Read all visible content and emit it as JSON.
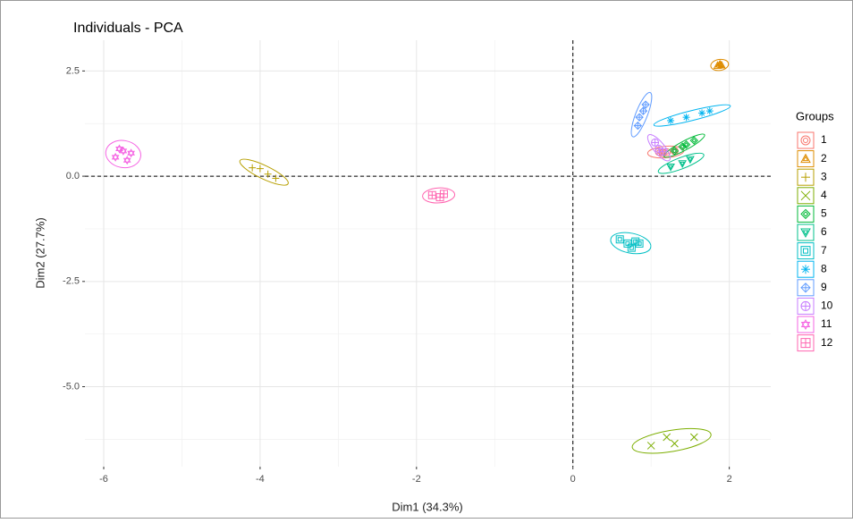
{
  "chart_data": {
    "type": "scatter",
    "title": "Individuals - PCA",
    "x_label": "Dim1 (34.3%)",
    "y_label": "Dim2 (27.7%)",
    "legend_title": "Groups",
    "xlim": [
      -6.24,
      2.53
    ],
    "ylim": [
      -6.9,
      3.23
    ],
    "xticks": [
      -6,
      -4,
      -2,
      0,
      2
    ],
    "yticks": [
      2.5,
      0.0,
      -2.5,
      -5.0
    ],
    "xminor": [
      -5,
      -3,
      -1,
      1
    ],
    "yminor": [
      1.25,
      -1.25,
      -3.75,
      -6.25
    ],
    "grid": true,
    "reference_lines": [
      0,
      0
    ],
    "legend": "right",
    "ellipses": true,
    "series": [
      {
        "name": "1",
        "color": "#F8766D",
        "shape": "circle",
        "x": [
          1.1,
          1.2,
          1.3,
          1.15
        ],
        "y": [
          0.58,
          0.57,
          0.6,
          0.55
        ]
      },
      {
        "name": "2",
        "color": "#DE8C00",
        "shape": "triangle",
        "x": [
          1.85,
          1.88,
          1.9
        ],
        "y": [
          2.63,
          2.66,
          2.64
        ]
      },
      {
        "name": "3",
        "color": "#B79F00",
        "shape": "plus",
        "x": [
          -4.1,
          -4.0,
          -3.9,
          -3.8
        ],
        "y": [
          0.2,
          0.18,
          0.05,
          -0.05
        ]
      },
      {
        "name": "4",
        "color": "#7CAE00",
        "shape": "cross",
        "x": [
          1.0,
          1.2,
          1.3,
          1.55
        ],
        "y": [
          -6.4,
          -6.2,
          -6.35,
          -6.2
        ]
      },
      {
        "name": "5",
        "color": "#00BA38",
        "shape": "diamond",
        "x": [
          1.3,
          1.45,
          1.55,
          1.4
        ],
        "y": [
          0.6,
          0.75,
          0.85,
          0.7
        ]
      },
      {
        "name": "6",
        "color": "#00C08B",
        "shape": "triangle-down",
        "x": [
          1.25,
          1.4,
          1.5
        ],
        "y": [
          0.22,
          0.3,
          0.4
        ]
      },
      {
        "name": "7",
        "color": "#00BFC4",
        "shape": "square",
        "x": [
          0.6,
          0.7,
          0.8,
          0.75,
          0.85
        ],
        "y": [
          -1.5,
          -1.6,
          -1.55,
          -1.7,
          -1.6
        ]
      },
      {
        "name": "8",
        "color": "#00B4F0",
        "shape": "asterisk",
        "x": [
          1.25,
          1.45,
          1.65,
          1.75
        ],
        "y": [
          1.32,
          1.4,
          1.5,
          1.55
        ]
      },
      {
        "name": "9",
        "color": "#619CFF",
        "shape": "diamond-plus",
        "x": [
          0.83,
          0.85,
          0.9,
          0.93
        ],
        "y": [
          1.2,
          1.4,
          1.55,
          1.7
        ]
      },
      {
        "name": "10",
        "color": "#C77CFF",
        "shape": "circle-plus",
        "x": [
          1.05,
          1.1,
          1.15
        ],
        "y": [
          0.8,
          0.65,
          0.58
        ]
      },
      {
        "name": "11",
        "color": "#F564E3",
        "shape": "star",
        "x": [
          -5.85,
          -5.75,
          -5.7,
          -5.65,
          -5.8
        ],
        "y": [
          0.45,
          0.6,
          0.38,
          0.55,
          0.65
        ]
      },
      {
        "name": "12",
        "color": "#FF64B0",
        "shape": "square-plus",
        "x": [
          -1.8,
          -1.7,
          -1.65
        ],
        "y": [
          -0.45,
          -0.5,
          -0.42
        ]
      }
    ]
  }
}
